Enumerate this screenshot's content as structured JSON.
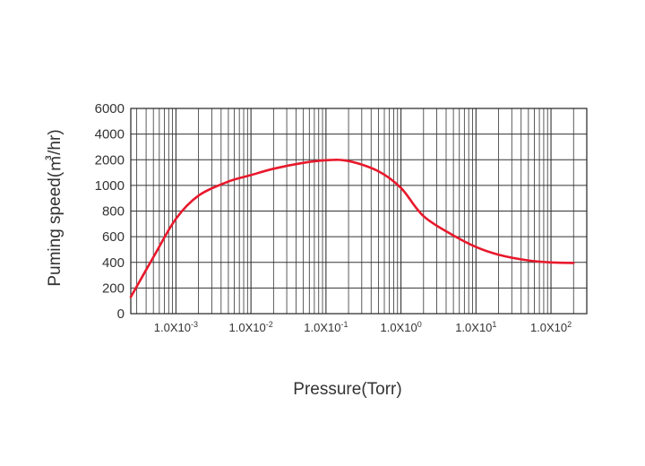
{
  "chart_data": {
    "type": "line",
    "xlabel": "Pressure(Torr)",
    "ylabel": "Puming speed(㎥/hr)",
    "x_scale": "log",
    "x_tick_labels": [
      {
        "value": 0.001,
        "base": "1.0X10",
        "exp": "-3"
      },
      {
        "value": 0.01,
        "base": "1.0X10",
        "exp": "-2"
      },
      {
        "value": 0.1,
        "base": "1.0X10",
        "exp": "-1"
      },
      {
        "value": 1,
        "base": "1.0X10",
        "exp": "0"
      },
      {
        "value": 10,
        "base": "1.0X10",
        "exp": "1"
      },
      {
        "value": 100,
        "base": "1.0X10",
        "exp": "2"
      }
    ],
    "y_tick_labels": [
      "0",
      "200",
      "400",
      "600",
      "800",
      "1000",
      "2000",
      "4000",
      "6000"
    ],
    "grid": true,
    "series": [
      {
        "color": "#e8192c",
        "points": [
          {
            "x": 0.00025,
            "y": 130
          },
          {
            "x": 0.0005,
            "y": 440
          },
          {
            "x": 0.001,
            "y": 740
          },
          {
            "x": 0.002,
            "y": 920
          },
          {
            "x": 0.005,
            "y": 1150
          },
          {
            "x": 0.01,
            "y": 1400
          },
          {
            "x": 0.02,
            "y": 1650
          },
          {
            "x": 0.05,
            "y": 1880
          },
          {
            "x": 0.1,
            "y": 1980
          },
          {
            "x": 0.2,
            "y": 1950
          },
          {
            "x": 0.5,
            "y": 1550
          },
          {
            "x": 1,
            "y": 980
          },
          {
            "x": 2,
            "y": 760
          },
          {
            "x": 5,
            "y": 610
          },
          {
            "x": 10,
            "y": 520
          },
          {
            "x": 20,
            "y": 460
          },
          {
            "x": 50,
            "y": 415
          },
          {
            "x": 100,
            "y": 400
          },
          {
            "x": 200,
            "y": 395
          }
        ]
      }
    ]
  }
}
